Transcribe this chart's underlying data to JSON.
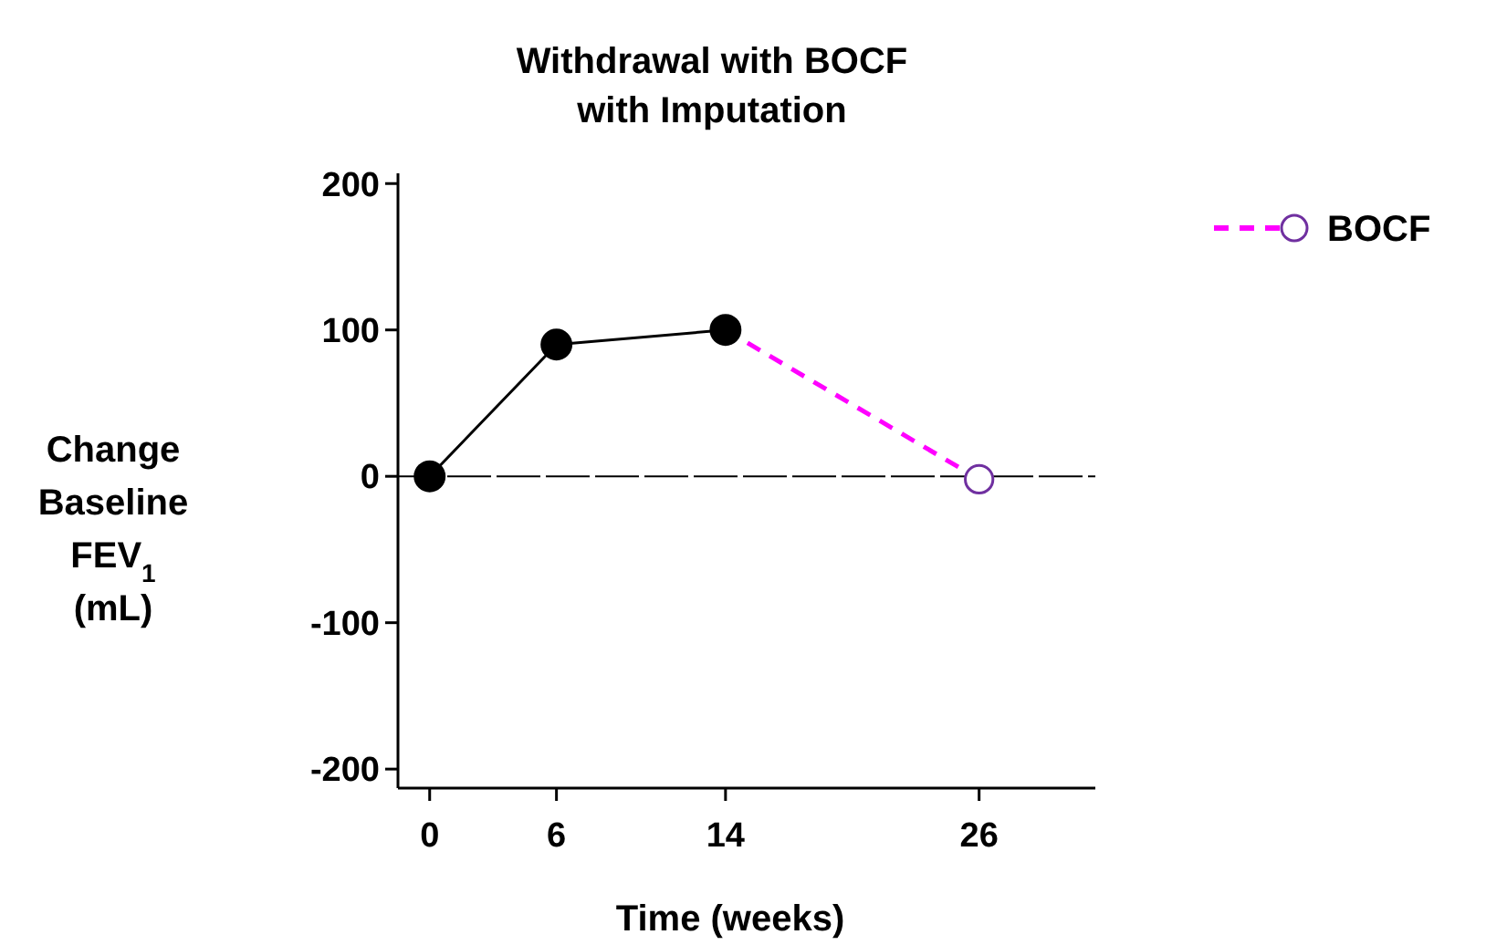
{
  "chart_data": {
    "type": "line",
    "title": "Withdrawal with BOCF with Imputation",
    "xlabel": "Time (weeks)",
    "ylabel": "Change Baseline FEV$_{1}$ (mL)",
    "xlim": [
      -1.5,
      31.5
    ],
    "xticks": [
      0,
      6,
      14,
      26
    ],
    "ylim": [
      -213,
      207
    ],
    "yticks": [
      -200,
      -100,
      0,
      100,
      200
    ],
    "series": [
      {
        "color": "#000000",
        "x": [
          0,
          6,
          14
        ],
        "values": [
          0,
          90,
          100
        ],
        "marker": "circle",
        "line_style": "solid"
      },
      {
        "name": "BOCF",
        "color": "#ff00ff",
        "x": [
          14,
          26
        ],
        "values": [
          100,
          -2
        ],
        "marker": "circle",
        "line_style": "dashed"
      }
    ],
    "ref_lines": [
      {
        "axis": "y",
        "value": 0,
        "color": "#000000",
        "line_style": "dashed"
      }
    ],
    "legend": "top right",
    "grid": false
  }
}
